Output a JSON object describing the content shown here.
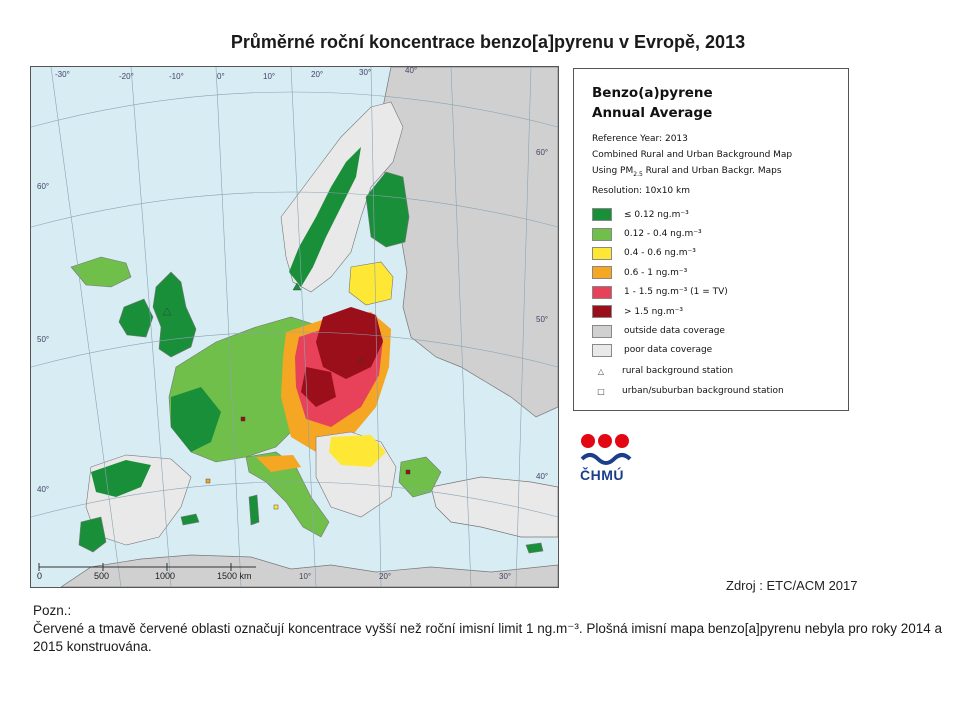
{
  "title": "Průměrné roční koncentrace benzo[a]pyrenu v Evropě, 2013",
  "map": {
    "longitude_labels": [
      "-30°",
      "-20°",
      "-10°",
      "0°",
      "10°",
      "20°",
      "30°",
      "40°"
    ],
    "latitude_labels": [
      "60°",
      "50°",
      "40°"
    ],
    "right_latitude_labels": [
      "60°",
      "50°",
      "40°"
    ],
    "bottom_longitude_labels": [
      "10°",
      "20°",
      "30°"
    ],
    "scale_labels": [
      "0",
      "500",
      "1000",
      "1500 km"
    ],
    "colors": {
      "sea": "#d7ecf3",
      "outside": "#d0d0d0",
      "poor": "#e9e9e9",
      "c1": "#1a8f3a",
      "c2": "#6fbf4a",
      "c3": "#ffe835",
      "c4": "#f5a623",
      "c5": "#e8415a",
      "c6": "#9b0f1a"
    }
  },
  "legend": {
    "title_line1": "Benzo(a)pyrene",
    "title_line2": "Annual Average",
    "meta1": "Reference Year: 2013",
    "meta2": "Combined Rural and Urban Background Map",
    "meta3_prefix": "Using PM",
    "meta3_sub": "2.5",
    "meta3_suffix": " Rural and Urban Backgr. Maps",
    "meta4": "Resolution:  10x10 km",
    "items": [
      {
        "label": "≤ 0.12 ng.m⁻³",
        "color": "#1a8f3a"
      },
      {
        "label": "0.12 - 0.4 ng.m⁻³",
        "color": "#6fbf4a"
      },
      {
        "label": "0.4 - 0.6 ng.m⁻³",
        "color": "#ffe835"
      },
      {
        "label": "0.6 - 1 ng.m⁻³",
        "color": "#f5a623"
      },
      {
        "label": "1 - 1.5 ng.m⁻³  (1 = TV)",
        "color": "#e8415a"
      },
      {
        "label": "> 1.5 ng.m⁻³",
        "color": "#9b0f1a"
      },
      {
        "label": "outside data coverage",
        "color": "#d0d0d0"
      },
      {
        "label": "poor data coverage",
        "color": "#e9e9e9"
      }
    ],
    "stations": [
      {
        "symbol": "△",
        "label": "rural background station"
      },
      {
        "symbol": "□",
        "label": "urban/suburban background station"
      }
    ]
  },
  "logo": {
    "text": "ČHMÚ",
    "colors": {
      "red": "#e30613",
      "blue": "#1a3e8c"
    }
  },
  "source": "Zdroj : ETC/ACM 2017",
  "note": {
    "heading": "Pozn.:",
    "text": "Červené a tmavě červené oblasti označují koncentrace vyšší než roční imisní limit 1 ng.m⁻³. Plošná imisní mapa benzo[a]pyrenu nebyla pro roky 2014 a 2015 konstruována."
  }
}
